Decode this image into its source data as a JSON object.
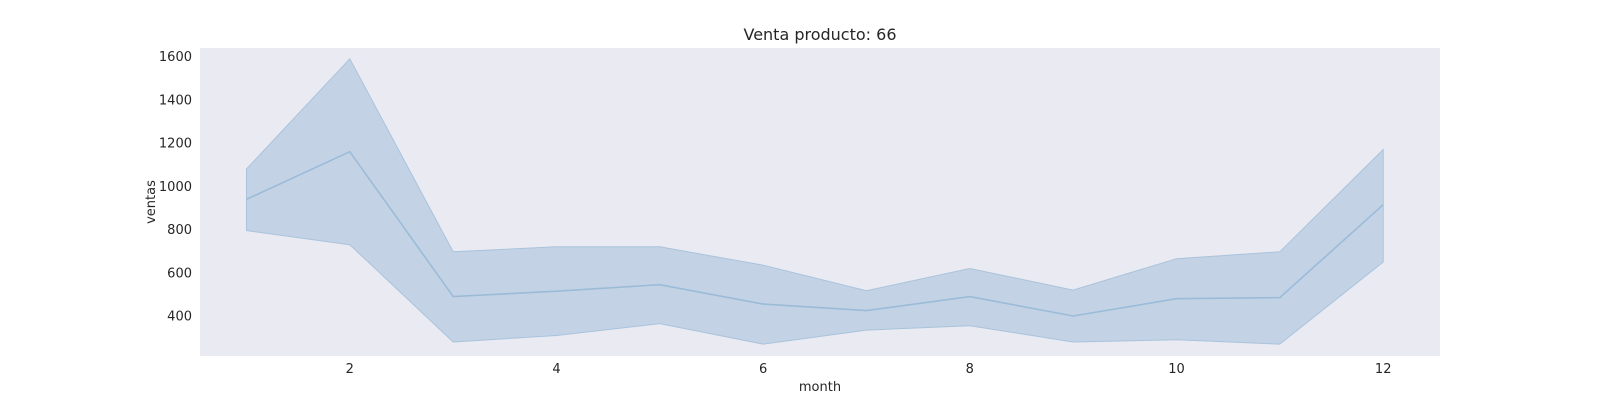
{
  "chart_data": {
    "type": "line",
    "title": "Venta producto: 66",
    "xlabel": "month",
    "ylabel": "ventas",
    "xlim": [
      0.55,
      12.55
    ],
    "ylim": [
      215,
      1640
    ],
    "xticks": [
      2,
      4,
      6,
      8,
      10,
      12
    ],
    "yticks": [
      400,
      600,
      800,
      1000,
      1200,
      1400,
      1600
    ],
    "grid": false,
    "colors": {
      "plot_bg": "#eaeaf2",
      "line": "#9bbbd8",
      "band": "#c3d3e5",
      "band_edge": "#a9c3dc"
    },
    "series": [
      {
        "x": [
          1,
          2,
          3,
          4,
          5,
          6,
          7,
          8,
          9,
          10,
          11,
          12
        ],
        "values": [
          940,
          1160,
          490,
          515,
          545,
          455,
          425,
          490,
          400,
          480,
          485,
          915
        ],
        "lower": [
          795,
          730,
          280,
          310,
          365,
          270,
          335,
          355,
          280,
          290,
          270,
          650
        ],
        "upper": [
          1080,
          1590,
          697,
          720,
          720,
          635,
          517,
          620,
          520,
          665,
          697,
          1170
        ]
      }
    ]
  }
}
